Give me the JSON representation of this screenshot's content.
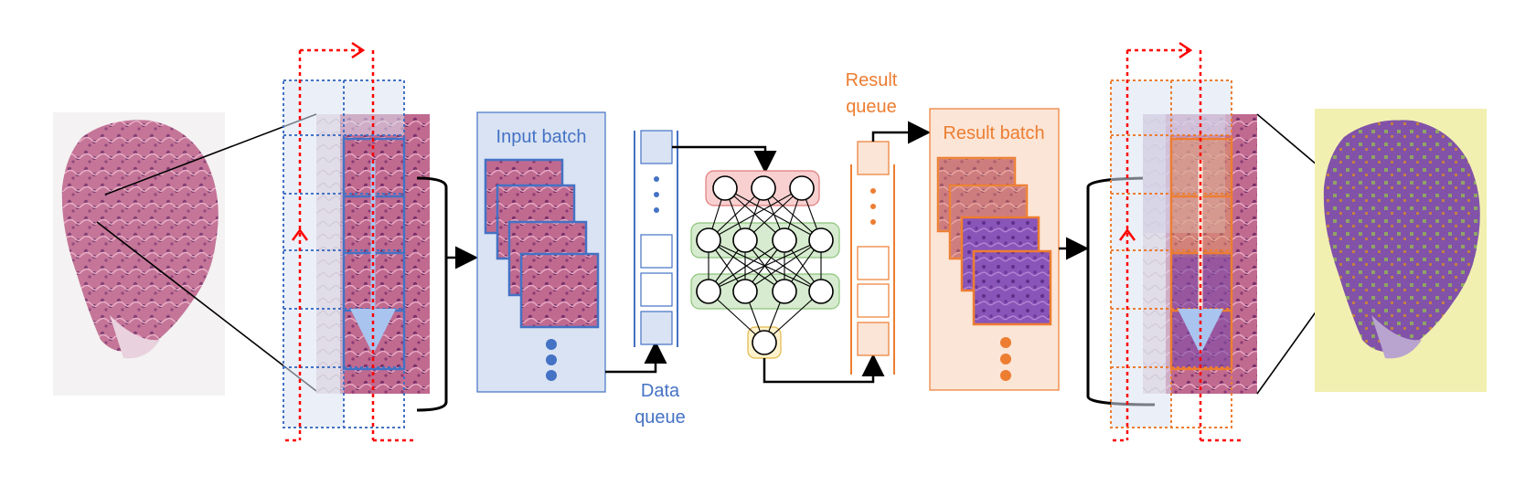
{
  "labels": {
    "input_batch": "Input batch",
    "data_queue_1": "Data",
    "data_queue_2": "queue",
    "result_queue_1": "Result",
    "result_queue_2": "queue",
    "result_batch": "Result batch"
  },
  "colors": {
    "blue": "#4472c4",
    "blue_fill": "#dae3f3",
    "orange": "#ed7d31",
    "orange_fill": "#fbe5d6",
    "red_dotted": "#ff0000",
    "tissue": "#b5527f",
    "tissue_dark": "#8e3f70",
    "purple": "#7e4aa6",
    "yellow_bg": "#f2f0b0",
    "nn_red_fill": "#f8d0d0",
    "nn_green_fill": "#d6ebcf",
    "nn_yellow_fill": "#fff2cc"
  }
}
